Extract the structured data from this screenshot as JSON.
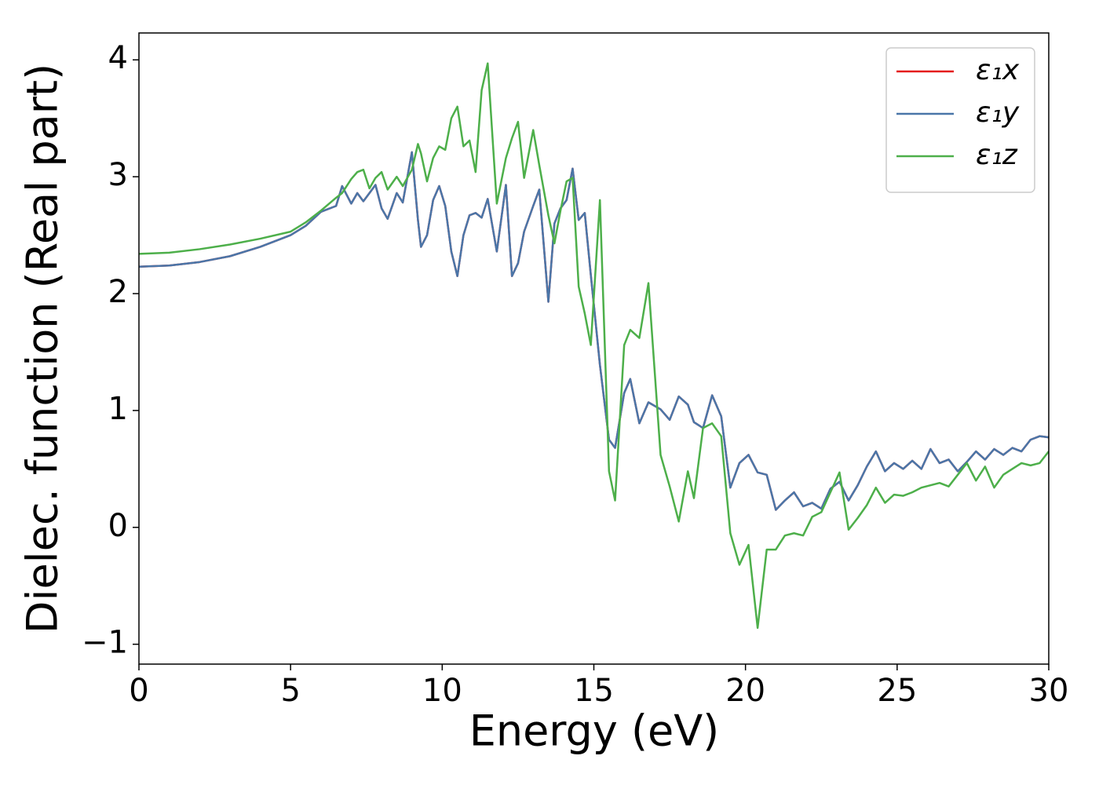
{
  "chart_data": {
    "type": "line",
    "xlabel": "Energy (eV)",
    "ylabel": "Dielec. function (Real part)",
    "x": [
      0,
      1,
      2,
      3,
      4,
      5,
      5.5,
      6,
      6.5,
      6.7,
      7,
      7.2,
      7.4,
      7.6,
      7.8,
      8.0,
      8.2,
      8.5,
      8.7,
      9.0,
      9.2,
      9.3,
      9.5,
      9.7,
      9.9,
      10.1,
      10.3,
      10.5,
      10.7,
      10.9,
      11.1,
      11.3,
      11.5,
      11.8,
      12.1,
      12.3,
      12.5,
      12.7,
      13.0,
      13.2,
      13.5,
      13.7,
      13.9,
      14.1,
      14.3,
      14.5,
      14.7,
      14.9,
      15.2,
      15.5,
      15.7,
      16.0,
      16.2,
      16.5,
      16.8,
      17.2,
      17.5,
      17.8,
      18.1,
      18.3,
      18.6,
      18.9,
      19.2,
      19.5,
      19.8,
      20.1,
      20.4,
      20.7,
      21.0,
      21.3,
      21.6,
      21.9,
      22.2,
      22.5,
      22.8,
      23.1,
      23.4,
      23.7,
      24.0,
      24.3,
      24.6,
      24.9,
      25.2,
      25.5,
      25.8,
      26.1,
      26.4,
      26.7,
      27.0,
      27.3,
      27.6,
      27.9,
      28.2,
      28.5,
      28.8,
      29.1,
      29.4,
      29.7,
      30
    ],
    "series": [
      {
        "name": "ε₁x",
        "color": "#e41a1c",
        "values": [
          2.23,
          2.24,
          2.27,
          2.32,
          2.4,
          2.5,
          2.58,
          2.7,
          2.75,
          2.92,
          2.77,
          2.86,
          2.79,
          2.86,
          2.93,
          2.73,
          2.64,
          2.86,
          2.78,
          3.21,
          2.63,
          2.4,
          2.5,
          2.8,
          2.92,
          2.75,
          2.36,
          2.15,
          2.5,
          2.67,
          2.69,
          2.65,
          2.81,
          2.36,
          2.93,
          2.15,
          2.26,
          2.53,
          2.75,
          2.89,
          1.93,
          2.6,
          2.73,
          2.8,
          3.07,
          2.63,
          2.69,
          2.16,
          1.39,
          0.75,
          0.68,
          1.15,
          1.27,
          0.89,
          1.07,
          1.01,
          0.92,
          1.12,
          1.05,
          0.9,
          0.85,
          1.13,
          0.95,
          0.34,
          0.55,
          0.62,
          0.47,
          0.45,
          0.15,
          0.23,
          0.3,
          0.18,
          0.21,
          0.16,
          0.33,
          0.39,
          0.23,
          0.36,
          0.52,
          0.65,
          0.48,
          0.55,
          0.5,
          0.57,
          0.5,
          0.67,
          0.55,
          0.58,
          0.48,
          0.56,
          0.65,
          0.58,
          0.67,
          0.62,
          0.68,
          0.65,
          0.75,
          0.78,
          0.77
        ]
      },
      {
        "name": "ε₁y",
        "color": "#4a76a8",
        "values": [
          2.23,
          2.24,
          2.27,
          2.32,
          2.4,
          2.5,
          2.58,
          2.7,
          2.75,
          2.92,
          2.77,
          2.86,
          2.79,
          2.86,
          2.93,
          2.73,
          2.64,
          2.86,
          2.78,
          3.21,
          2.63,
          2.4,
          2.5,
          2.8,
          2.92,
          2.75,
          2.36,
          2.15,
          2.5,
          2.67,
          2.69,
          2.65,
          2.81,
          2.36,
          2.93,
          2.15,
          2.26,
          2.53,
          2.75,
          2.89,
          1.93,
          2.6,
          2.73,
          2.8,
          3.07,
          2.63,
          2.69,
          2.16,
          1.39,
          0.75,
          0.68,
          1.15,
          1.27,
          0.89,
          1.07,
          1.01,
          0.92,
          1.12,
          1.05,
          0.9,
          0.85,
          1.13,
          0.95,
          0.34,
          0.55,
          0.62,
          0.47,
          0.45,
          0.15,
          0.23,
          0.3,
          0.18,
          0.21,
          0.16,
          0.33,
          0.39,
          0.23,
          0.36,
          0.52,
          0.65,
          0.48,
          0.55,
          0.5,
          0.57,
          0.5,
          0.67,
          0.55,
          0.58,
          0.48,
          0.56,
          0.65,
          0.58,
          0.67,
          0.62,
          0.68,
          0.65,
          0.75,
          0.78,
          0.77
        ]
      },
      {
        "name": "ε₁z",
        "color": "#4daf4a",
        "values": [
          2.34,
          2.35,
          2.38,
          2.42,
          2.47,
          2.53,
          2.61,
          2.71,
          2.82,
          2.86,
          2.98,
          3.04,
          3.06,
          2.9,
          2.99,
          3.04,
          2.89,
          3.0,
          2.92,
          3.06,
          3.28,
          3.2,
          2.96,
          3.16,
          3.26,
          3.23,
          3.5,
          3.6,
          3.26,
          3.31,
          3.04,
          3.74,
          3.97,
          2.77,
          3.16,
          3.33,
          3.47,
          2.99,
          3.4,
          3.1,
          2.67,
          2.43,
          2.71,
          2.96,
          2.99,
          2.06,
          1.83,
          1.56,
          2.8,
          0.48,
          0.23,
          1.56,
          1.69,
          1.62,
          2.09,
          0.62,
          0.35,
          0.05,
          0.48,
          0.25,
          0.85,
          0.89,
          0.78,
          -0.05,
          -0.32,
          -0.15,
          -0.86,
          -0.19,
          -0.19,
          -0.07,
          -0.05,
          -0.07,
          0.09,
          0.13,
          0.3,
          0.47,
          -0.02,
          0.08,
          0.19,
          0.34,
          0.21,
          0.28,
          0.27,
          0.3,
          0.34,
          0.36,
          0.38,
          0.35,
          0.45,
          0.55,
          0.4,
          0.52,
          0.34,
          0.45,
          0.5,
          0.55,
          0.53,
          0.55,
          0.65
        ]
      }
    ],
    "xlim": [
      0,
      30
    ],
    "xticks": [
      0,
      5,
      10,
      15,
      20,
      25,
      30
    ],
    "ylim": [
      -1.17,
      4.23
    ],
    "yticks": [
      {
        "value": -1,
        "label": "−1"
      },
      0,
      1,
      2,
      3,
      4
    ],
    "legend": "upper right",
    "grid": false
  }
}
